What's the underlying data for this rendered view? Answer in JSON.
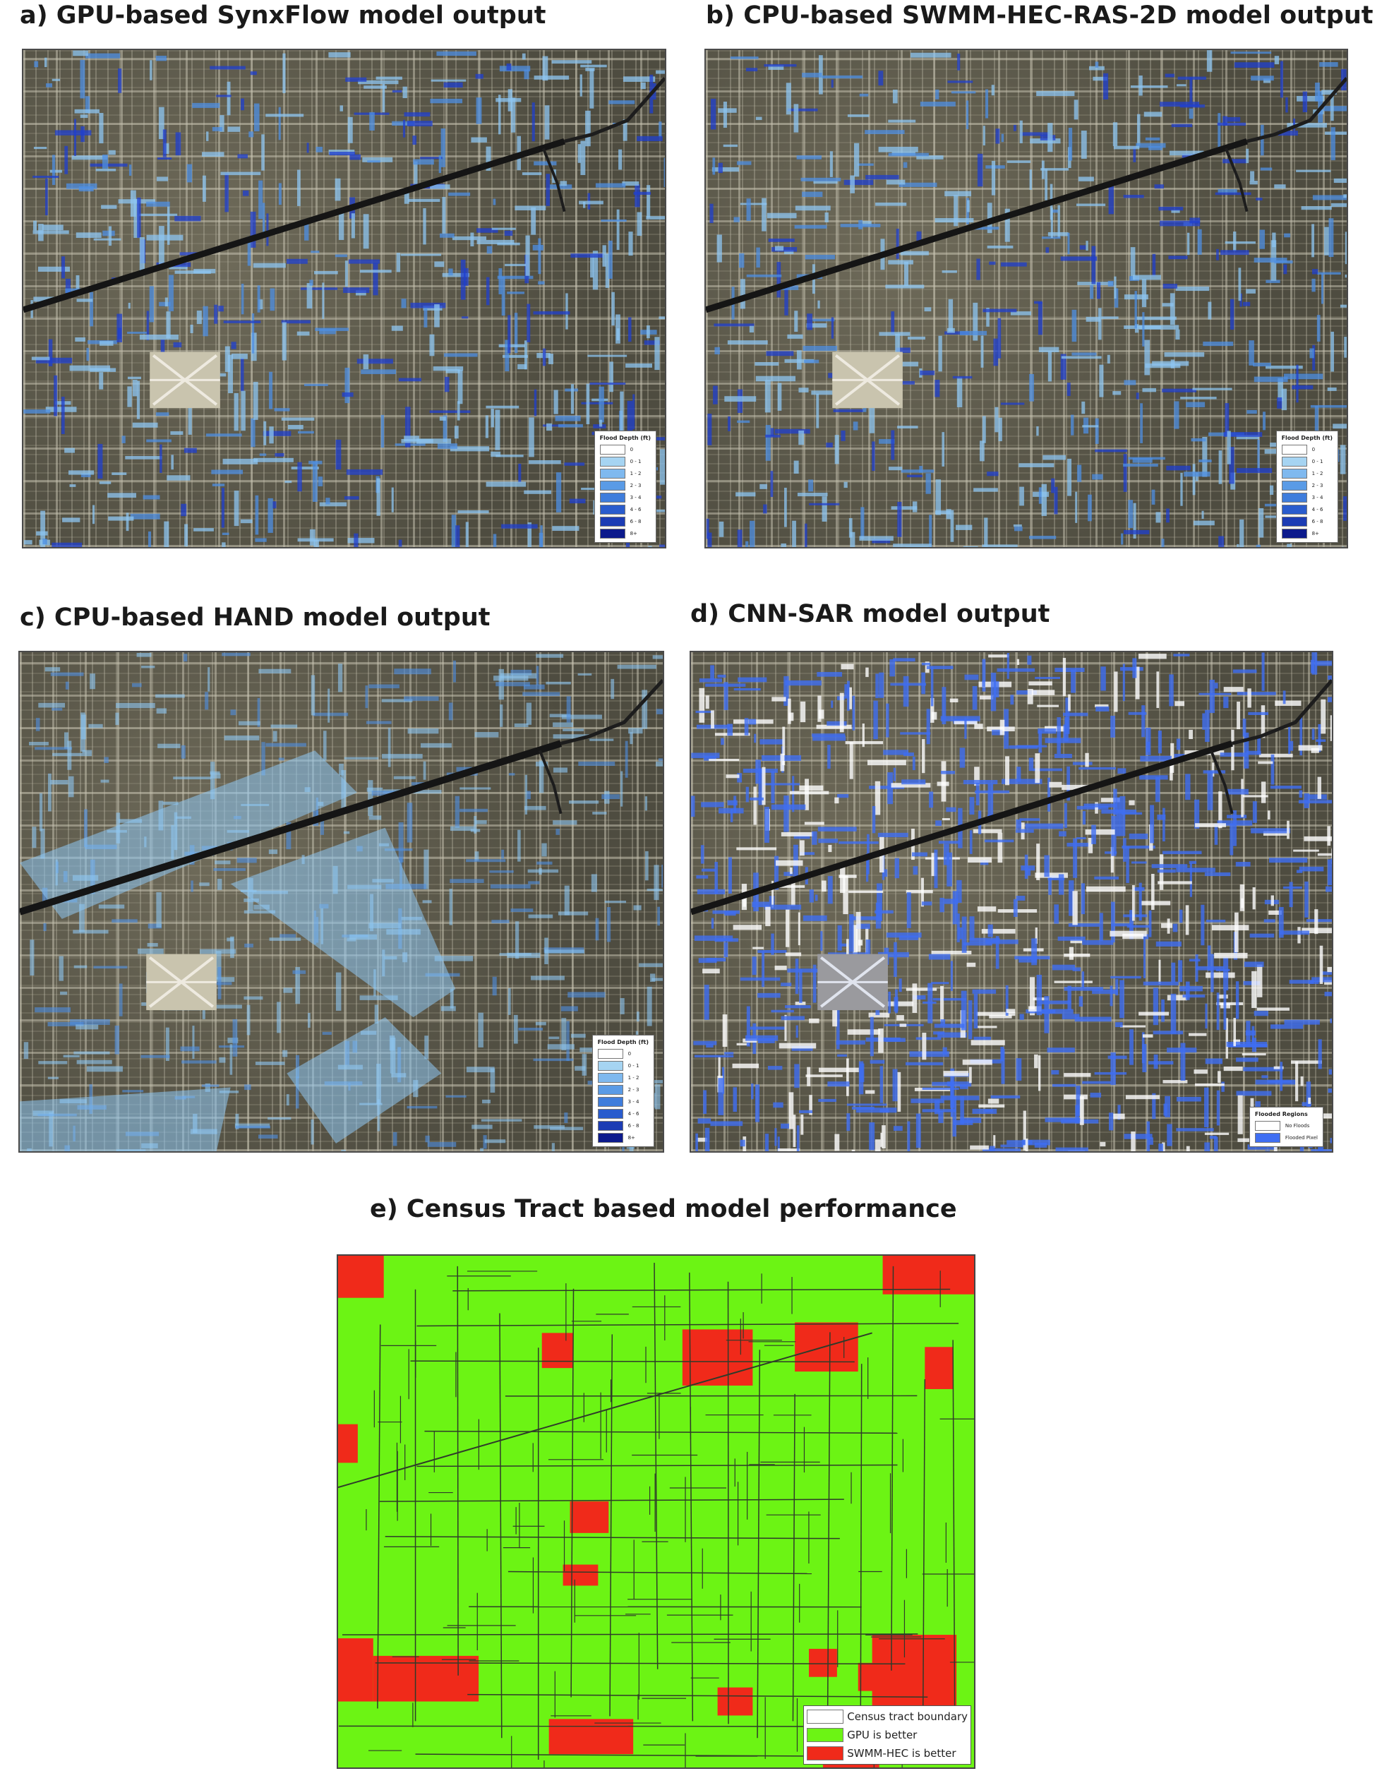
{
  "panels": {
    "a": {
      "title": "a) GPU-based SynxFlow model output"
    },
    "b": {
      "title": "b) CPU-based SWMM-HEC-RAS-2D model output"
    },
    "c": {
      "title": "c) CPU-based HAND model output"
    },
    "d": {
      "title": "d) CNN-SAR model output"
    },
    "e": {
      "title": "e) Census Tract based model performance"
    }
  },
  "depth_legend": {
    "title": "Flood Depth (ft)",
    "items": [
      {
        "label": "0",
        "color": "#ffffff"
      },
      {
        "label": "0 - 1",
        "color": "#a6d4f2"
      },
      {
        "label": "1 - 2",
        "color": "#7fb9ef"
      },
      {
        "label": "2 - 3",
        "color": "#5a9be6"
      },
      {
        "label": "3 - 4",
        "color": "#3f7ddc"
      },
      {
        "label": "4 - 6",
        "color": "#2a5ccd"
      },
      {
        "label": "6 - 8",
        "color": "#1c3cb4"
      },
      {
        "label": "8+",
        "color": "#0c1a8c"
      }
    ]
  },
  "sar_legend": {
    "title": "Flooded Regions",
    "items": [
      {
        "label": "No Floods",
        "color": "#ffffff"
      },
      {
        "label": "Flooded Pixel",
        "color": "#3f6ef2"
      }
    ]
  },
  "tract_legend": {
    "items": [
      {
        "label": "Census tract boundary",
        "color": "#ffffff"
      },
      {
        "label": "GPU is better",
        "color": "#6cf414"
      },
      {
        "label": "SWMM-HEC is better",
        "color": "#f02a1a"
      }
    ]
  },
  "colors": {
    "gpu_better": "#6cf414",
    "swmm_better": "#f02a1a",
    "tract_line": "#2f3b2a",
    "flood_light": "#8ec6f2",
    "flood_mid": "#4e8fe3",
    "flood_dark": "#1f3fcf",
    "sar_flood": "#3f6ef2",
    "rail": "#151515"
  }
}
